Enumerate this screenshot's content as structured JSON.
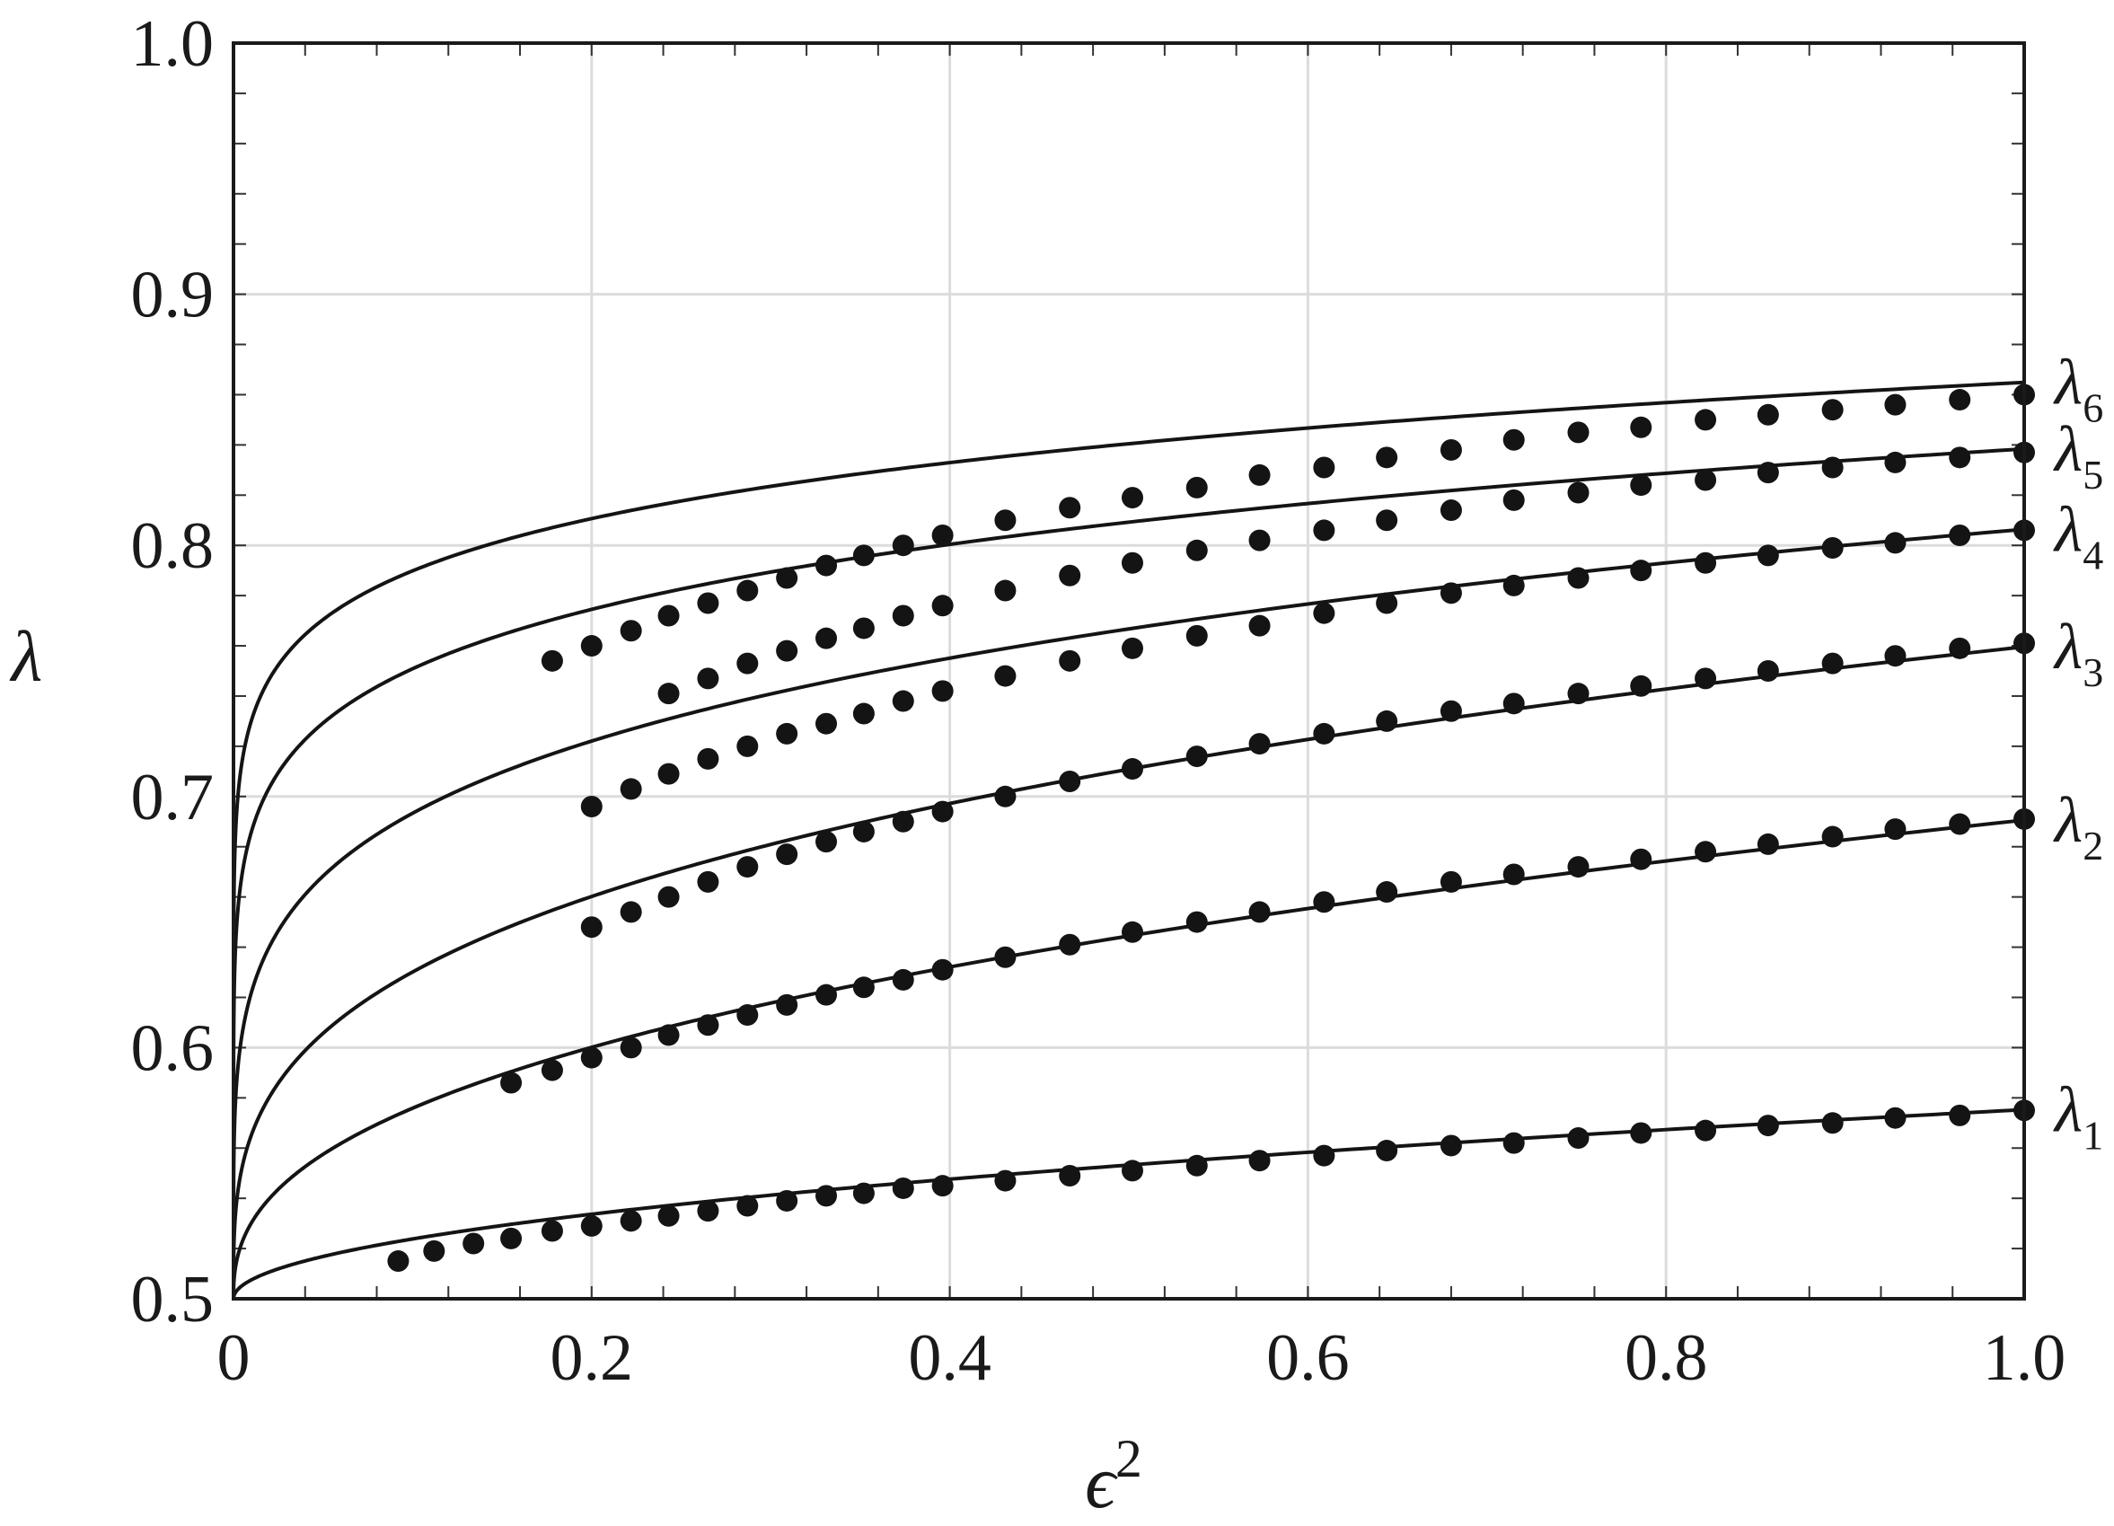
{
  "chart_data": {
    "type": "line",
    "xlabel": "ϵ",
    "xlabel_sup": "2",
    "ylabel": "λ",
    "xlim": [
      0,
      1.0
    ],
    "ylim": [
      0.5,
      1.0
    ],
    "x_ticks": [
      "0",
      "0.2",
      "0.4",
      "0.6",
      "0.8",
      "1.0"
    ],
    "y_ticks": [
      "0.5",
      "0.6",
      "0.7",
      "0.8",
      "0.9",
      "1.0"
    ],
    "grid": true,
    "legend": "inline-right",
    "series": [
      {
        "name": "λ1",
        "label_base": "λ",
        "label_sub": "1",
        "curve": {
          "a": 0.0753,
          "p": 0.5
        },
        "points": {
          "x": [
            0.092,
            0.112,
            0.134,
            0.155,
            0.178,
            0.2,
            0.222,
            0.243,
            0.265,
            0.287,
            0.309,
            0.331,
            0.352,
            0.374,
            0.396,
            0.431,
            0.467,
            0.502,
            0.538,
            0.573,
            0.609,
            0.644,
            0.68,
            0.715,
            0.751,
            0.786,
            0.822,
            0.857,
            0.893,
            0.928,
            0.964,
            1.0
          ],
          "y": [
            0.515,
            0.519,
            0.522,
            0.524,
            0.527,
            0.529,
            0.531,
            0.533,
            0.535,
            0.537,
            0.539,
            0.541,
            0.542,
            0.544,
            0.545,
            0.547,
            0.549,
            0.551,
            0.553,
            0.555,
            0.557,
            0.559,
            0.561,
            0.562,
            0.564,
            0.566,
            0.567,
            0.569,
            0.57,
            0.572,
            0.573,
            0.575
          ]
        }
      },
      {
        "name": "λ2",
        "label_base": "λ",
        "label_sub": "2",
        "curve": {
          "a": 0.1906,
          "p": 0.4
        },
        "points": {
          "x": [
            0.155,
            0.178,
            0.2,
            0.222,
            0.243,
            0.265,
            0.287,
            0.309,
            0.331,
            0.352,
            0.374,
            0.396,
            0.431,
            0.467,
            0.502,
            0.538,
            0.573,
            0.609,
            0.644,
            0.68,
            0.715,
            0.751,
            0.786,
            0.822,
            0.857,
            0.893,
            0.928,
            0.964,
            1.0
          ],
          "y": [
            0.586,
            0.591,
            0.596,
            0.6,
            0.605,
            0.609,
            0.613,
            0.617,
            0.621,
            0.624,
            0.627,
            0.631,
            0.636,
            0.641,
            0.646,
            0.65,
            0.654,
            0.658,
            0.662,
            0.666,
            0.669,
            0.672,
            0.675,
            0.678,
            0.681,
            0.684,
            0.687,
            0.689,
            0.691
          ]
        }
      },
      {
        "name": "λ3",
        "label_base": "λ",
        "label_sub": "3",
        "curve": {
          "a": 0.2596,
          "p": 0.3
        },
        "points": {
          "x": [
            0.2,
            0.222,
            0.243,
            0.265,
            0.287,
            0.309,
            0.331,
            0.352,
            0.374,
            0.396,
            0.431,
            0.467,
            0.502,
            0.538,
            0.573,
            0.609,
            0.644,
            0.68,
            0.715,
            0.751,
            0.786,
            0.822,
            0.857,
            0.893,
            0.928,
            0.964,
            1.0
          ],
          "y": [
            0.648,
            0.654,
            0.66,
            0.666,
            0.672,
            0.677,
            0.682,
            0.686,
            0.69,
            0.694,
            0.7,
            0.706,
            0.711,
            0.716,
            0.721,
            0.725,
            0.73,
            0.734,
            0.737,
            0.741,
            0.744,
            0.747,
            0.75,
            0.753,
            0.756,
            0.759,
            0.761
          ]
        }
      },
      {
        "name": "λ4",
        "label_base": "λ",
        "label_sub": "4",
        "curve": {
          "a": 0.3064,
          "p": 0.2
        },
        "points": {
          "x": [
            0.2,
            0.222,
            0.243,
            0.265,
            0.287,
            0.309,
            0.331,
            0.352,
            0.374,
            0.396,
            0.431,
            0.467,
            0.502,
            0.538,
            0.573,
            0.609,
            0.644,
            0.68,
            0.715,
            0.751,
            0.786,
            0.822,
            0.857,
            0.893,
            0.928,
            0.964,
            1.0
          ],
          "y": [
            0.696,
            0.703,
            0.709,
            0.715,
            0.72,
            0.725,
            0.729,
            0.733,
            0.738,
            0.742,
            0.748,
            0.754,
            0.759,
            0.764,
            0.768,
            0.773,
            0.777,
            0.781,
            0.784,
            0.787,
            0.79,
            0.793,
            0.796,
            0.799,
            0.801,
            0.804,
            0.806
          ]
        }
      },
      {
        "name": "λ5",
        "label_base": "λ",
        "label_sub": "5",
        "curve": {
          "a": 0.3384,
          "p": 0.13
        },
        "points": {
          "x": [
            0.243,
            0.265,
            0.287,
            0.309,
            0.331,
            0.352,
            0.374,
            0.396,
            0.431,
            0.467,
            0.502,
            0.538,
            0.573,
            0.609,
            0.644,
            0.68,
            0.715,
            0.751,
            0.786,
            0.822,
            0.857,
            0.893,
            0.928,
            0.964,
            1.0
          ],
          "y": [
            0.741,
            0.747,
            0.753,
            0.758,
            0.763,
            0.767,
            0.772,
            0.776,
            0.782,
            0.788,
            0.793,
            0.798,
            0.802,
            0.806,
            0.81,
            0.814,
            0.818,
            0.821,
            0.824,
            0.826,
            0.829,
            0.831,
            0.833,
            0.835,
            0.837
          ]
        }
      },
      {
        "name": "λ6",
        "label_base": "λ",
        "label_sub": "6",
        "curve": {
          "a": 0.3649,
          "p": 0.1
        },
        "points": {
          "x": [
            0.178,
            0.2,
            0.222,
            0.243,
            0.265,
            0.287,
            0.309,
            0.331,
            0.352,
            0.374,
            0.396,
            0.431,
            0.467,
            0.502,
            0.538,
            0.573,
            0.609,
            0.644,
            0.68,
            0.715,
            0.751,
            0.786,
            0.822,
            0.857,
            0.893,
            0.928,
            0.964,
            1.0
          ],
          "y": [
            0.754,
            0.76,
            0.766,
            0.772,
            0.777,
            0.782,
            0.787,
            0.792,
            0.796,
            0.8,
            0.804,
            0.81,
            0.815,
            0.819,
            0.823,
            0.828,
            0.831,
            0.835,
            0.838,
            0.842,
            0.845,
            0.847,
            0.85,
            0.852,
            0.854,
            0.856,
            0.858,
            0.86
          ]
        }
      }
    ]
  }
}
